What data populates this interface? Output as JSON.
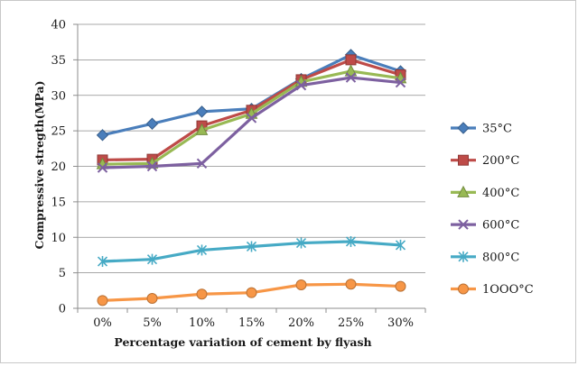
{
  "chart_data": {
    "type": "line",
    "title": "",
    "xlabel": "Percentage variation of cement by flyash",
    "ylabel": "Compressive stregth(MPa)",
    "categories": [
      "0%",
      "5%",
      "10%",
      "15%",
      "20%",
      "25%",
      "30%"
    ],
    "ylim": [
      0,
      40
    ],
    "yticks": [
      0,
      5,
      10,
      15,
      20,
      25,
      30,
      35,
      40
    ],
    "grid": true,
    "legend_position": "right",
    "series": [
      {
        "name": "35°C",
        "color": "#4a7ebb",
        "marker": "diamond",
        "values": [
          24.4,
          26.0,
          27.7,
          28.1,
          32.3,
          35.7,
          33.4
        ]
      },
      {
        "name": "200°C",
        "color": "#be4b48",
        "marker": "square",
        "values": [
          20.9,
          21.0,
          25.7,
          27.9,
          32.2,
          35.0,
          32.9
        ]
      },
      {
        "name": "400°C",
        "color": "#98b954",
        "marker": "triangle",
        "values": [
          20.3,
          20.4,
          25.1,
          27.4,
          31.9,
          33.4,
          32.4
        ]
      },
      {
        "name": "600°C",
        "color": "#7d60a0",
        "marker": "x",
        "values": [
          19.8,
          20.0,
          20.4,
          26.8,
          31.4,
          32.5,
          31.8
        ]
      },
      {
        "name": "800°C",
        "color": "#46aac5",
        "marker": "star",
        "values": [
          6.6,
          6.9,
          8.2,
          8.7,
          9.2,
          9.4,
          8.9
        ]
      },
      {
        "name": "1OOO°C",
        "color": "#f79646",
        "marker": "circle",
        "values": [
          1.1,
          1.4,
          2.0,
          2.2,
          3.3,
          3.4,
          3.1
        ]
      }
    ]
  }
}
